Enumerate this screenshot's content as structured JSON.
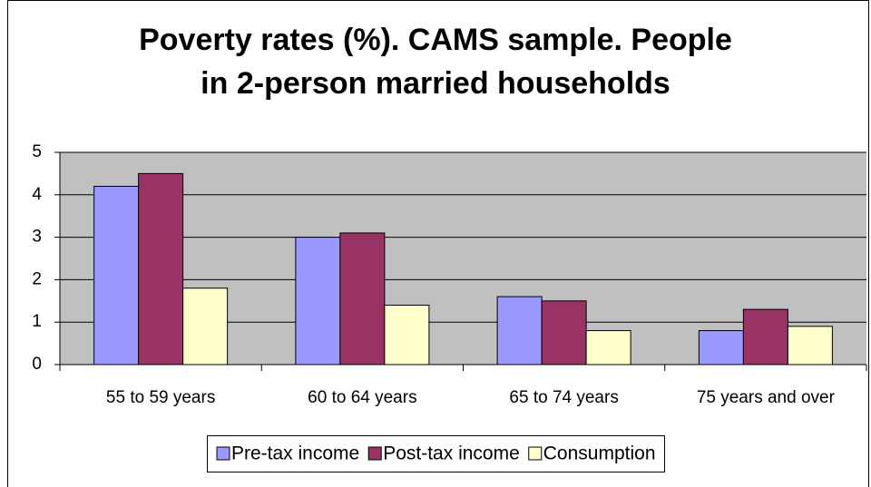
{
  "chart_data": {
    "type": "bar",
    "title": [
      "Poverty rates (%).  CAMS sample. People",
      "in 2-person married households"
    ],
    "categories": [
      "55 to 59 years",
      "60 to 64 years",
      "65 to 74 years",
      "75 years and over"
    ],
    "series": [
      {
        "name": "Pre-tax income",
        "color": "#9999ff",
        "values": [
          4.2,
          3.0,
          1.6,
          0.8
        ]
      },
      {
        "name": "Post-tax income",
        "color": "#993366",
        "values": [
          4.5,
          3.1,
          1.5,
          1.3
        ]
      },
      {
        "name": "Consumption",
        "color": "#ffffcc",
        "values": [
          1.8,
          1.4,
          0.8,
          0.9
        ]
      }
    ],
    "ylim": [
      0,
      5
    ],
    "yticks": [
      0,
      1,
      2,
      3,
      4,
      5
    ],
    "grid": true,
    "legend": "bottom"
  }
}
